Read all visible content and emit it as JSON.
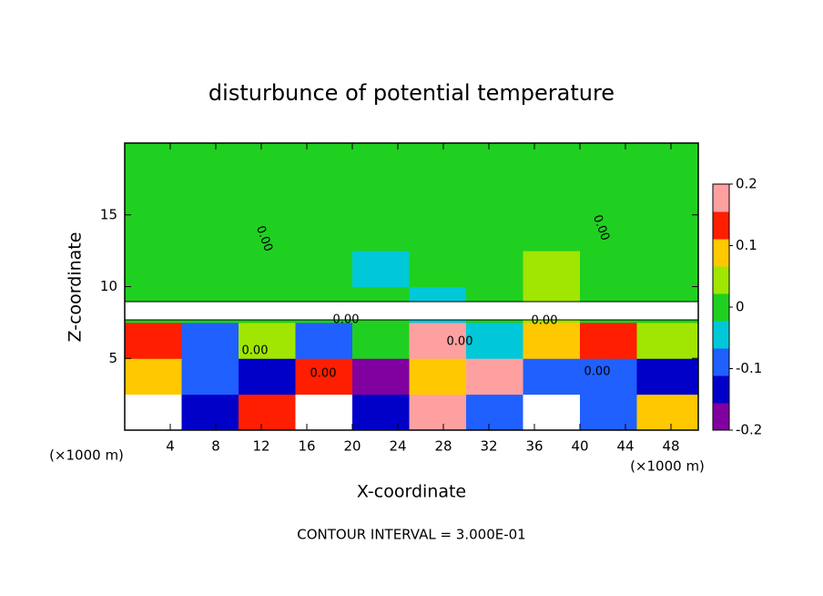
{
  "chart_data": {
    "type": "heatmap",
    "title": "disturbunce of potential temperature",
    "xlabel": "X-coordinate",
    "ylabel": "Z-coordinate",
    "x_unit_left": "(×1000 m)",
    "x_unit_right": "(×1000 m)",
    "footer": "CONTOUR INTERVAL = 3.000E-01",
    "xlim": [
      0,
      50.4
    ],
    "ylim": [
      0,
      20
    ],
    "xticks": [
      4,
      8,
      12,
      16,
      20,
      24,
      28,
      32,
      36,
      40,
      44,
      48
    ],
    "yticks": [
      5,
      10,
      15
    ],
    "x_edges": [
      0,
      5,
      10,
      15,
      20,
      25,
      30,
      35,
      40,
      45,
      50.4
    ],
    "z_edges": [
      0,
      2.5,
      5,
      7.5,
      10,
      12.5,
      15,
      17.5,
      20
    ],
    "values": [
      [
        0.25,
        -0.15,
        0.15,
        0.25,
        -0.15,
        0.2,
        -0.1,
        0.25,
        -0.12,
        0.1
      ],
      [
        0.1,
        -0.1,
        -0.15,
        0.15,
        -0.18,
        0.12,
        0.18,
        -0.08,
        -0.12,
        -0.15
      ],
      [
        0.15,
        -0.12,
        0.05,
        -0.1,
        0.02,
        0.2,
        -0.05,
        0.1,
        0.15,
        0.05
      ],
      [
        0,
        0.01,
        0,
        -0.02,
        0,
        -0.05,
        0.01,
        0.03,
        0,
        0.01
      ],
      [
        0.02,
        0.01,
        0,
        -0.01,
        -0.03,
        0.01,
        0.02,
        0.03,
        0.02,
        0.02
      ],
      [
        0.02,
        0.01,
        0.01,
        -0.02,
        0,
        0.01,
        0.02,
        0.02,
        0.02,
        0.01
      ],
      [
        0.02,
        0.01,
        0,
        -0.01,
        0,
        0.01,
        0.02,
        0.02,
        0.01,
        0.01
      ],
      [
        0.01,
        0,
        0,
        -0.01,
        0,
        0,
        0.01,
        0.01,
        0.01,
        0.01
      ]
    ],
    "vlim": [
      -0.2,
      0.2
    ],
    "colorbar_ticks": [
      -0.2,
      -0.1,
      0,
      0.1,
      0.2
    ],
    "colormap": [
      "#8000a0",
      "#0000c8",
      "#2060ff",
      "#00c8d8",
      "#20d020",
      "#a0e600",
      "#ffc800",
      "#ff1e00",
      "#ffa0a0"
    ],
    "contour_labels": [
      "0.00",
      "0.00",
      "0.00",
      "0.00",
      "0.00",
      "0.00",
      "0.00",
      "0.00"
    ]
  }
}
